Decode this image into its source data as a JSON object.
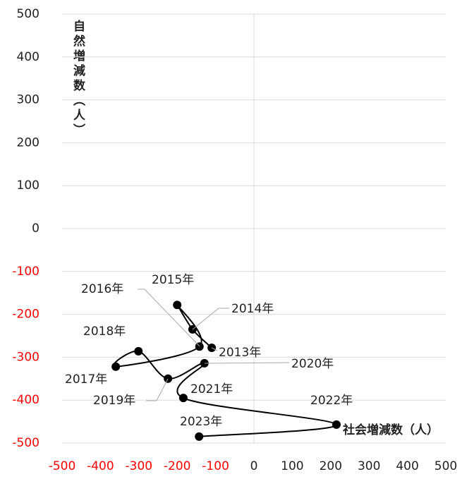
{
  "chart_data": {
    "type": "scatter",
    "x_label": "社会増減数（人）",
    "y_label": "自然増減数（人）",
    "categories": [
      "2013年",
      "2014年",
      "2015年",
      "2016年",
      "2017年",
      "2018年",
      "2019年",
      "2020年",
      "2021年",
      "2022年",
      "2023年"
    ],
    "x": [
      -110,
      -160,
      -200,
      -142,
      -360,
      -301,
      -224,
      -129,
      -184,
      215,
      -143
    ],
    "values": [
      -278,
      -235,
      -178,
      -275,
      -322,
      -286,
      -350,
      -314,
      -395,
      -457,
      -485
    ],
    "color": "#000000",
    "negative_tick_color": "#ff0000",
    "xlim": [
      -500,
      500
    ],
    "xticks": [
      -500,
      -400,
      -300,
      -200,
      -100,
      0,
      100,
      200,
      300,
      400,
      500
    ],
    "ylim": [
      -500,
      500
    ],
    "yticks": [
      -500,
      -400,
      -300,
      -200,
      -100,
      0,
      100,
      200,
      300,
      400,
      500
    ],
    "grid": true
  }
}
